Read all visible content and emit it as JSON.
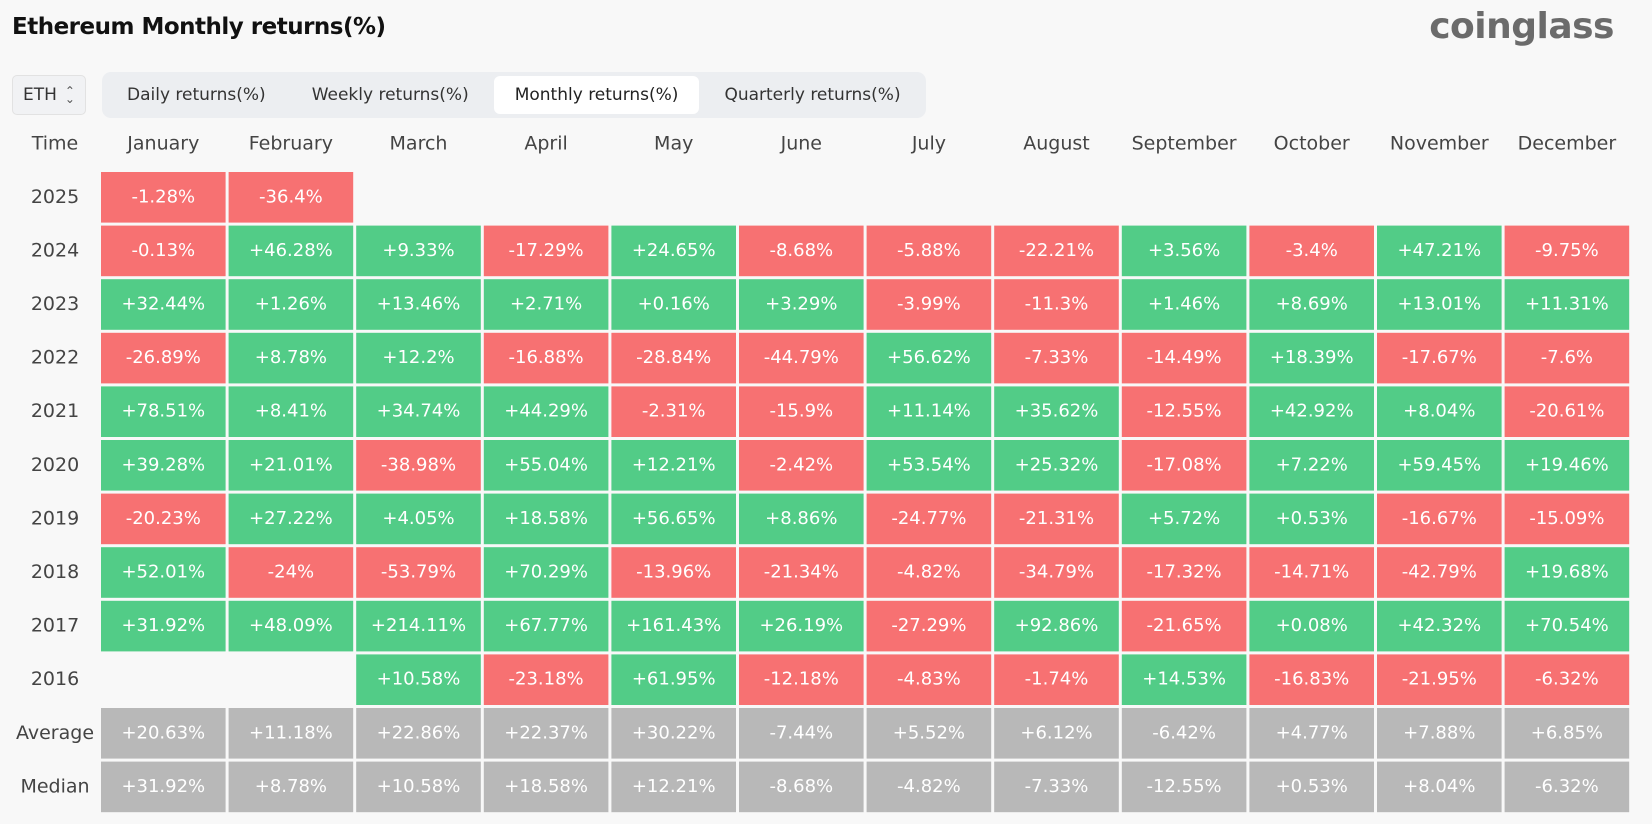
{
  "header": {
    "title": "Ethereum Monthly returns(%)",
    "brand": "coinglass"
  },
  "controls": {
    "asset": "ETH",
    "tabs": [
      {
        "label": "Daily returns(%)",
        "active": false
      },
      {
        "label": "Weekly returns(%)",
        "active": false
      },
      {
        "label": "Monthly returns(%)",
        "active": true
      },
      {
        "label": "Quarterly returns(%)",
        "active": false
      }
    ]
  },
  "colors": {
    "positive": "#52cc87",
    "negative": "#f77172",
    "summary": "#b8b8b8",
    "cell_text": "#ffffff",
    "header_text": "#444444"
  },
  "chart_data": {
    "type": "heatmap",
    "title": "Ethereum Monthly returns(%)",
    "row_header": "Time",
    "columns": [
      "January",
      "February",
      "March",
      "April",
      "May",
      "June",
      "July",
      "August",
      "September",
      "October",
      "November",
      "December"
    ],
    "rows": [
      {
        "label": "2025",
        "kind": "year",
        "cells": [
          "-1.28%",
          "-36.4%",
          null,
          null,
          null,
          null,
          null,
          null,
          null,
          null,
          null,
          null
        ]
      },
      {
        "label": "2024",
        "kind": "year",
        "cells": [
          "-0.13%",
          "+46.28%",
          "+9.33%",
          "-17.29%",
          "+24.65%",
          "-8.68%",
          "-5.88%",
          "-22.21%",
          "+3.56%",
          "-3.4%",
          "+47.21%",
          "-9.75%"
        ]
      },
      {
        "label": "2023",
        "kind": "year",
        "cells": [
          "+32.44%",
          "+1.26%",
          "+13.46%",
          "+2.71%",
          "+0.16%",
          "+3.29%",
          "-3.99%",
          "-11.3%",
          "+1.46%",
          "+8.69%",
          "+13.01%",
          "+11.31%"
        ]
      },
      {
        "label": "2022",
        "kind": "year",
        "cells": [
          "-26.89%",
          "+8.78%",
          "+12.2%",
          "-16.88%",
          "-28.84%",
          "-44.79%",
          "+56.62%",
          "-7.33%",
          "-14.49%",
          "+18.39%",
          "-17.67%",
          "-7.6%"
        ]
      },
      {
        "label": "2021",
        "kind": "year",
        "cells": [
          "+78.51%",
          "+8.41%",
          "+34.74%",
          "+44.29%",
          "-2.31%",
          "-15.9%",
          "+11.14%",
          "+35.62%",
          "-12.55%",
          "+42.92%",
          "+8.04%",
          "-20.61%"
        ]
      },
      {
        "label": "2020",
        "kind": "year",
        "cells": [
          "+39.28%",
          "+21.01%",
          "-38.98%",
          "+55.04%",
          "+12.21%",
          "-2.42%",
          "+53.54%",
          "+25.32%",
          "-17.08%",
          "+7.22%",
          "+59.45%",
          "+19.46%"
        ]
      },
      {
        "label": "2019",
        "kind": "year",
        "cells": [
          "-20.23%",
          "+27.22%",
          "+4.05%",
          "+18.58%",
          "+56.65%",
          "+8.86%",
          "-24.77%",
          "-21.31%",
          "+5.72%",
          "+0.53%",
          "-16.67%",
          "-15.09%"
        ]
      },
      {
        "label": "2018",
        "kind": "year",
        "cells": [
          "+52.01%",
          "-24%",
          "-53.79%",
          "+70.29%",
          "-13.96%",
          "-21.34%",
          "-4.82%",
          "-34.79%",
          "-17.32%",
          "-14.71%",
          "-42.79%",
          "+19.68%"
        ]
      },
      {
        "label": "2017",
        "kind": "year",
        "cells": [
          "+31.92%",
          "+48.09%",
          "+214.11%",
          "+67.77%",
          "+161.43%",
          "+26.19%",
          "-27.29%",
          "+92.86%",
          "-21.65%",
          "+0.08%",
          "+42.32%",
          "+70.54%"
        ]
      },
      {
        "label": "2016",
        "kind": "year",
        "cells": [
          null,
          null,
          "+10.58%",
          "-23.18%",
          "+61.95%",
          "-12.18%",
          "-4.83%",
          "-1.74%",
          "+14.53%",
          "-16.83%",
          "-21.95%",
          "-6.32%"
        ]
      },
      {
        "label": "Average",
        "kind": "summary",
        "cells": [
          "+20.63%",
          "+11.18%",
          "+22.86%",
          "+22.37%",
          "+30.22%",
          "-7.44%",
          "+5.52%",
          "+6.12%",
          "-6.42%",
          "+4.77%",
          "+7.88%",
          "+6.85%"
        ]
      },
      {
        "label": "Median",
        "kind": "summary",
        "cells": [
          "+31.92%",
          "+8.78%",
          "+10.58%",
          "+18.58%",
          "+12.21%",
          "-8.68%",
          "-4.82%",
          "-7.33%",
          "-12.55%",
          "+0.53%",
          "+8.04%",
          "-6.32%"
        ]
      }
    ]
  }
}
